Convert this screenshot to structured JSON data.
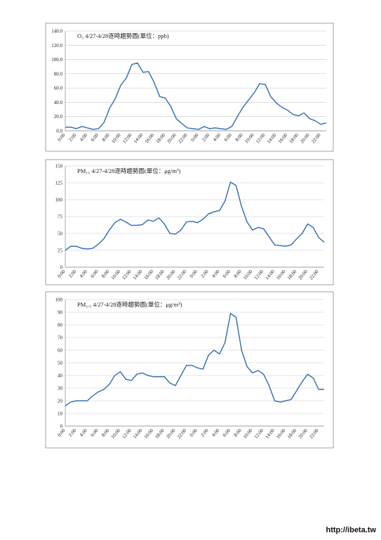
{
  "chart_data": [
    {
      "type": "line",
      "title": "O₃ 4/27-4/28逐時趨勢圖(單位：ppb)",
      "categories": [
        "0:00",
        null,
        "2:00",
        null,
        "4:00",
        null,
        "6:00",
        null,
        "8:00",
        null,
        "10:00",
        null,
        "12:00",
        null,
        "14:00",
        null,
        "16:00",
        null,
        "18:00",
        null,
        "20:00",
        null,
        "22:00",
        null,
        "0:00",
        null,
        "2:00",
        null,
        "4:00",
        null,
        "6:00",
        null,
        "8:00",
        null,
        "10:00",
        null,
        "12:00",
        null,
        "14:00",
        null,
        "16:00",
        null,
        "18:00",
        null,
        "20:00",
        null,
        "22:00",
        null
      ],
      "values": [
        5,
        5,
        3,
        6,
        4,
        2,
        3,
        12,
        32,
        45,
        64,
        74,
        93,
        95,
        82,
        83,
        68,
        48,
        46,
        34,
        17,
        10,
        4,
        3,
        2,
        6,
        3,
        4,
        3,
        2,
        6,
        20,
        33,
        43,
        53,
        66,
        65,
        48,
        39,
        33,
        29,
        23,
        21,
        25,
        17,
        14,
        9,
        11
      ],
      "color": "#3b73b3",
      "grid": true,
      "ylim": [
        0,
        140
      ],
      "yticks": [
        {
          "value": 0,
          "label": "0.0"
        },
        {
          "value": 20,
          "label": "20.0"
        },
        {
          "value": 40,
          "label": "40.0"
        },
        {
          "value": 60,
          "label": "60.0"
        },
        {
          "value": 80,
          "label": "80.0"
        },
        {
          "value": 100,
          "label": "100.0"
        },
        {
          "value": 120,
          "label": "120.0"
        },
        {
          "value": 140,
          "label": "140.0"
        }
      ]
    },
    {
      "type": "line",
      "title": "PM₁₀ 4/27-4/28逐時趨勢圖(單位：μg/m³)",
      "categories": [
        "0:00",
        null,
        "2:00",
        null,
        "4:00",
        null,
        "6:00",
        null,
        "8:00",
        null,
        "10:00",
        null,
        "12:00",
        null,
        "14:00",
        null,
        "16:00",
        null,
        "18:00",
        null,
        "20:00",
        null,
        "22:00",
        null,
        "0:00",
        null,
        "2:00",
        null,
        "4:00",
        null,
        "6:00",
        null,
        "8:00",
        null,
        "10:00",
        null,
        "12:00",
        null,
        "14:00",
        null,
        "16:00",
        null,
        "18:00",
        null,
        "20:00",
        null,
        "22:00",
        null
      ],
      "values": [
        25,
        31,
        31,
        28,
        27,
        28,
        34,
        42,
        55,
        66,
        71,
        67,
        62,
        62,
        63,
        70,
        68,
        73,
        64,
        50,
        49,
        55,
        67,
        68,
        66,
        71,
        79,
        82,
        84,
        98,
        126,
        121,
        90,
        67,
        55,
        59,
        57,
        45,
        33,
        32,
        31,
        33,
        42,
        50,
        64,
        59,
        44,
        37
      ],
      "color": "#3b73b3",
      "grid": true,
      "ylim": [
        0,
        150
      ],
      "yticks": [
        0,
        25,
        50,
        75,
        100,
        125,
        150
      ]
    },
    {
      "type": "line",
      "title": "PM₂.₅ 4/27-4/28逐時趨勢圖(單位：μg/m³)",
      "categories": [
        "0:00",
        null,
        "2:00",
        null,
        "4:00",
        null,
        "6:00",
        null,
        "8:00",
        null,
        "10:00",
        null,
        "12:00",
        null,
        "14:00",
        null,
        "16:00",
        null,
        "18:00",
        null,
        "20:00",
        null,
        "22:00",
        null,
        "0:00",
        null,
        "2:00",
        null,
        "4:00",
        null,
        "6:00",
        null,
        "8:00",
        null,
        "10:00",
        null,
        "12:00",
        null,
        "14:00",
        null,
        "16:00",
        null,
        "18:00",
        null,
        "20:00",
        null,
        "22:00",
        null
      ],
      "values": [
        16,
        19,
        20,
        20,
        20,
        24,
        27,
        29,
        33,
        40,
        43,
        37,
        36,
        41,
        42,
        40,
        39,
        39,
        39,
        34,
        32,
        40,
        48,
        48,
        46,
        45,
        56,
        60,
        57,
        66,
        89,
        86,
        60,
        47,
        42,
        44,
        41,
        32,
        20,
        19,
        20,
        21,
        28,
        35,
        41,
        38,
        29,
        29
      ],
      "color": "#3b73b3",
      "grid": true,
      "ylim": [
        0,
        100
      ],
      "yticks": [
        0,
        10,
        20,
        30,
        40,
        50,
        60,
        70,
        80,
        90,
        100
      ]
    }
  ],
  "watermark": "http://ibeta.tw"
}
